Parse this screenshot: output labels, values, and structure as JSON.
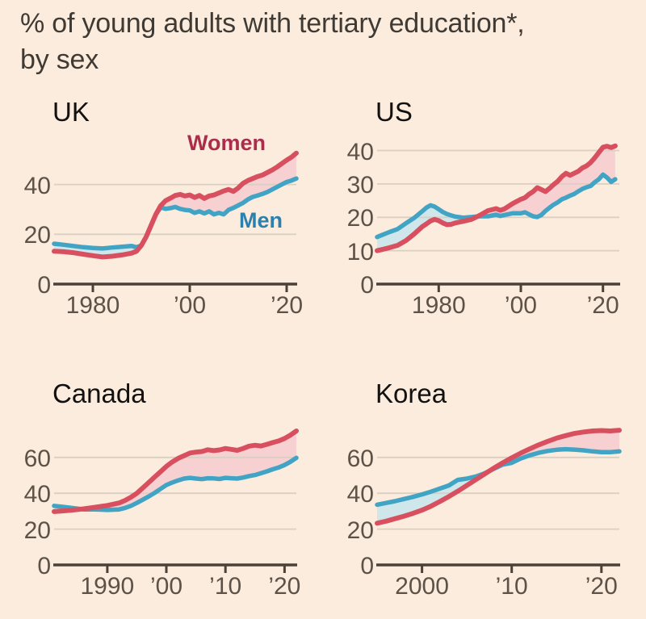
{
  "header": {
    "title_line1": "% of young adults with tertiary education*,",
    "title_line2": "by sex"
  },
  "legend": {
    "women": "Women",
    "men": "Men"
  },
  "colors": {
    "background": "#fcecdd",
    "women_line": "#d8505f",
    "men_line": "#42a4c5",
    "women_area": "#f7d1d2",
    "men_area": "#cfe7ea",
    "women_label": "#ab2d4c",
    "men_label": "#2c80ae",
    "grid": "#d9cfc3",
    "axis": "#4b4138",
    "tick_text": "#5c5247"
  },
  "chart_data": [
    {
      "type": "line",
      "title": "UK",
      "x": [
        1972,
        1974,
        1976,
        1978,
        1980,
        1982,
        1984,
        1986,
        1988,
        1989,
        1990,
        1991,
        1992,
        1993,
        1994,
        1995,
        1996,
        1997,
        1998,
        1999,
        2000,
        2001,
        2002,
        2003,
        2004,
        2005,
        2006,
        2007,
        2008,
        2009,
        2010,
        2011,
        2012,
        2013,
        2014,
        2015,
        2016,
        2017,
        2018,
        2019,
        2020,
        2021,
        2022
      ],
      "series": [
        {
          "name": "Women",
          "values": [
            13.2,
            13.0,
            12.6,
            12.0,
            11.4,
            10.9,
            11.2,
            11.7,
            12.4,
            13.2,
            15.5,
            19.0,
            23.5,
            28.0,
            31.5,
            33.5,
            34.5,
            35.6,
            36.0,
            35.4,
            35.8,
            34.8,
            35.6,
            34.4,
            35.4,
            35.8,
            36.6,
            37.4,
            38.0,
            37.2,
            38.6,
            40.5,
            41.6,
            42.4,
            43.2,
            43.8,
            44.8,
            45.8,
            47.0,
            48.4,
            49.8,
            51.0,
            52.6
          ]
        },
        {
          "name": "Men",
          "values": [
            16.2,
            15.8,
            15.3,
            14.8,
            14.5,
            14.3,
            14.7,
            15.0,
            15.3,
            14.8,
            15.5,
            19.0,
            23.5,
            28.0,
            30.8,
            30.2,
            30.5,
            31.0,
            30.2,
            29.8,
            29.6,
            28.6,
            29.2,
            28.4,
            29.2,
            28.0,
            28.6,
            28.0,
            29.8,
            30.6,
            31.6,
            32.6,
            34.0,
            35.0,
            35.6,
            36.2,
            37.0,
            38.0,
            39.0,
            40.0,
            41.0,
            41.6,
            42.4
          ]
        }
      ],
      "xlim": [
        1972,
        2022
      ],
      "ylim": [
        0,
        59
      ],
      "yticks": [
        0,
        20,
        40
      ],
      "xticks": [
        {
          "v": 1980,
          "label": "1980"
        },
        {
          "v": 2000,
          "label": "’00"
        },
        {
          "v": 2020,
          "label": "’20"
        }
      ],
      "grid": true
    },
    {
      "type": "line",
      "title": "US",
      "x": [
        1965,
        1966,
        1968,
        1970,
        1972,
        1974,
        1976,
        1977,
        1978,
        1979,
        1980,
        1981,
        1982,
        1983,
        1984,
        1986,
        1988,
        1990,
        1992,
        1994,
        1995,
        1996,
        1998,
        2000,
        2001,
        2002,
        2003,
        2004,
        2005,
        2006,
        2007,
        2008,
        2009,
        2010,
        2011,
        2012,
        2013,
        2014,
        2015,
        2016,
        2017,
        2018,
        2019,
        2020,
        2021,
        2022,
        2023
      ],
      "series": [
        {
          "name": "Women",
          "values": [
            10.0,
            10.3,
            10.9,
            11.6,
            13.0,
            15.0,
            17.2,
            18.0,
            18.9,
            19.4,
            19.0,
            18.3,
            17.8,
            17.9,
            18.3,
            18.8,
            19.4,
            20.6,
            22.0,
            22.6,
            22.1,
            22.5,
            24.1,
            25.4,
            25.9,
            26.9,
            27.7,
            28.9,
            28.3,
            27.7,
            28.7,
            29.8,
            30.8,
            32.2,
            33.2,
            32.6,
            33.2,
            33.8,
            34.8,
            35.4,
            36.4,
            37.8,
            39.4,
            41.0,
            41.3,
            40.9,
            41.4
          ]
        },
        {
          "name": "Men",
          "values": [
            14.1,
            14.6,
            15.6,
            16.5,
            18.2,
            19.8,
            21.8,
            22.9,
            23.6,
            23.2,
            22.4,
            21.6,
            21.0,
            20.6,
            20.2,
            19.9,
            20.1,
            20.3,
            20.3,
            20.8,
            20.4,
            20.7,
            21.2,
            21.2,
            21.5,
            20.9,
            20.3,
            20.1,
            20.7,
            21.9,
            22.9,
            23.8,
            24.5,
            25.4,
            25.9,
            26.5,
            27.0,
            27.8,
            28.5,
            29.0,
            29.4,
            30.5,
            31.4,
            32.8,
            31.9,
            30.6,
            31.4
          ]
        }
      ],
      "xlim": [
        1965,
        2024
      ],
      "ylim": [
        0,
        44
      ],
      "yticks": [
        0,
        10,
        20,
        30,
        40
      ],
      "xticks": [
        {
          "v": 1980,
          "label": "1980"
        },
        {
          "v": 2000,
          "label": "’00"
        },
        {
          "v": 2020,
          "label": "’20"
        }
      ],
      "grid": true
    },
    {
      "type": "line",
      "title": "Canada",
      "x": [
        1981,
        1982,
        1984,
        1986,
        1988,
        1990,
        1992,
        1993,
        1994,
        1995,
        1996,
        1997,
        1998,
        1999,
        2000,
        2001,
        2002,
        2003,
        2004,
        2005,
        2006,
        2007,
        2008,
        2009,
        2010,
        2011,
        2012,
        2013,
        2014,
        2015,
        2016,
        2017,
        2018,
        2019,
        2020,
        2021,
        2022
      ],
      "series": [
        {
          "name": "Women",
          "values": [
            29.8,
            30.0,
            30.6,
            31.3,
            32.2,
            33.2,
            34.6,
            36.0,
            37.8,
            40.0,
            43.0,
            46.0,
            49.0,
            52.0,
            55.0,
            57.5,
            59.5,
            61.0,
            62.5,
            63.0,
            63.3,
            64.3,
            63.8,
            64.2,
            65.0,
            64.5,
            64.0,
            65.0,
            66.3,
            66.8,
            66.4,
            67.3,
            68.3,
            69.2,
            70.6,
            72.5,
            74.8
          ]
        },
        {
          "name": "Men",
          "values": [
            33.0,
            32.6,
            31.8,
            31.0,
            31.0,
            30.7,
            31.0,
            31.8,
            33.0,
            34.6,
            36.4,
            38.2,
            40.2,
            42.4,
            44.6,
            46.0,
            47.2,
            48.2,
            48.6,
            48.2,
            47.9,
            48.4,
            48.3,
            48.0,
            48.6,
            48.4,
            48.2,
            48.8,
            49.6,
            50.2,
            51.2,
            52.2,
            53.4,
            54.4,
            55.8,
            57.6,
            59.8
          ]
        }
      ],
      "xlim": [
        1981,
        2022
      ],
      "ylim": [
        0,
        82
      ],
      "yticks": [
        0,
        20,
        40,
        60
      ],
      "xticks": [
        {
          "v": 1990,
          "label": "1990"
        },
        {
          "v": 2000,
          "label": "’00"
        },
        {
          "v": 2010,
          "label": "’10"
        },
        {
          "v": 2020,
          "label": "’20"
        }
      ],
      "grid": true
    },
    {
      "type": "line",
      "title": "Korea",
      "x": [
        1995,
        1996,
        1997,
        1998,
        1999,
        2000,
        2001,
        2002,
        2003,
        2004,
        2005,
        2006,
        2007,
        2008,
        2009,
        2010,
        2011,
        2012,
        2013,
        2014,
        2015,
        2016,
        2017,
        2018,
        2019,
        2020,
        2021,
        2022
      ],
      "series": [
        {
          "name": "Women",
          "values": [
            23.3,
            24.4,
            25.8,
            27.2,
            28.8,
            30.6,
            32.8,
            35.4,
            38.2,
            41.2,
            44.4,
            47.6,
            50.8,
            54.0,
            57.0,
            59.8,
            62.4,
            64.8,
            67.0,
            69.0,
            70.8,
            72.2,
            73.4,
            74.2,
            74.8,
            75.0,
            74.8,
            75.2
          ]
        },
        {
          "name": "Men",
          "values": [
            33.6,
            34.6,
            35.6,
            36.8,
            38.0,
            39.4,
            40.9,
            42.6,
            44.4,
            47.5,
            48.2,
            49.4,
            51.2,
            53.6,
            56.0,
            57.0,
            59.4,
            61.2,
            62.6,
            63.6,
            64.3,
            64.6,
            64.4,
            64.0,
            63.4,
            63.0,
            63.0,
            63.4
          ]
        }
      ],
      "xlim": [
        1995,
        2022
      ],
      "ylim": [
        0,
        82
      ],
      "yticks": [
        0,
        20,
        40,
        60
      ],
      "xticks": [
        {
          "v": 2000,
          "label": "2000"
        },
        {
          "v": 2010,
          "label": "’10"
        },
        {
          "v": 2020,
          "label": "’20"
        }
      ],
      "grid": true
    }
  ]
}
